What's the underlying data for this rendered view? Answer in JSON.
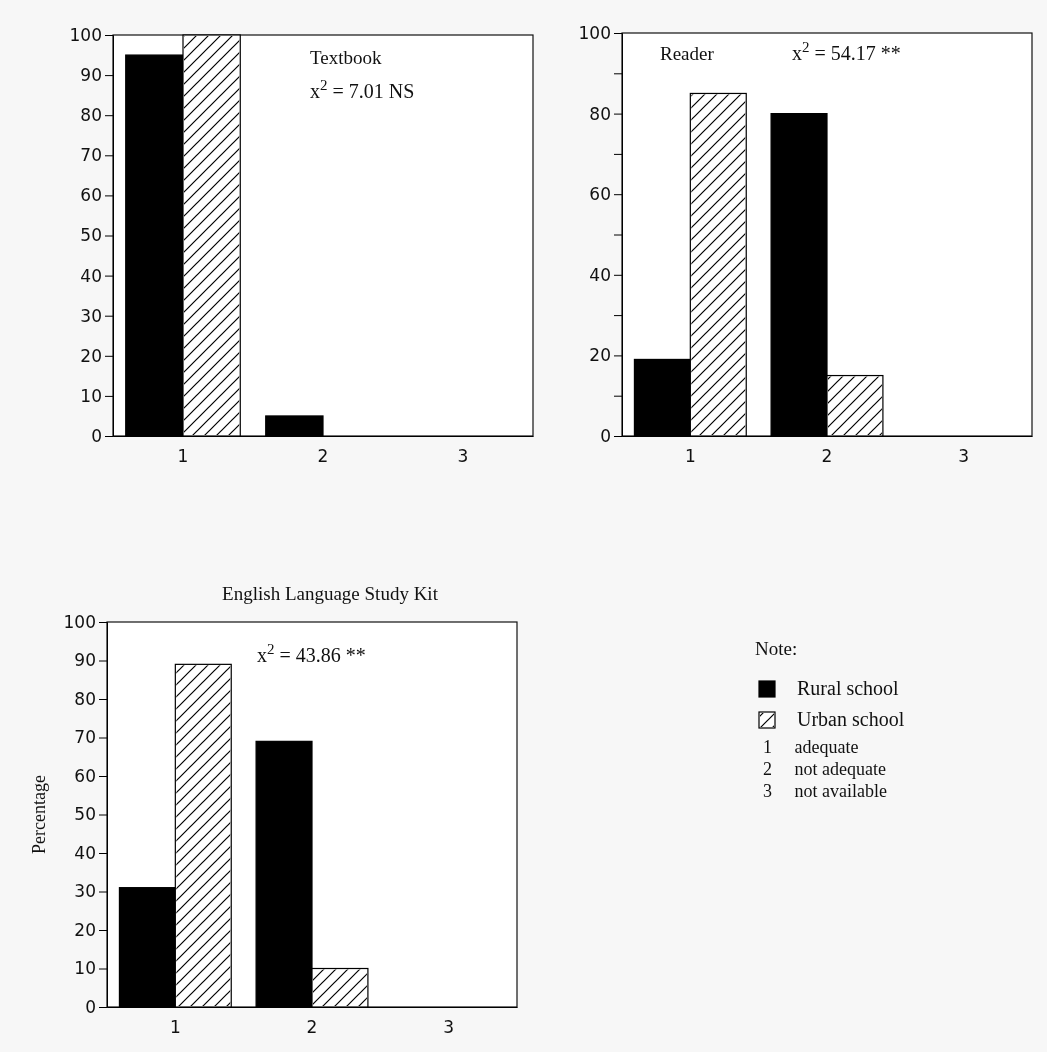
{
  "chart_data": [
    {
      "type": "bar",
      "title": "Textbook",
      "categories": [
        "1",
        "2",
        "3"
      ],
      "series": [
        {
          "color": "#000000",
          "values": [
            95,
            5,
            0
          ]
        },
        {
          "color": "#ffffff",
          "values": [
            100,
            0,
            0
          ]
        }
      ],
      "ylim": [
        0,
        100
      ],
      "yticks": [
        0,
        10,
        20,
        30,
        40,
        50,
        60,
        70,
        80,
        90,
        100
      ],
      "annotations": [
        "x$^{2}$ = 7.01 NS"
      ]
    },
    {
      "type": "bar",
      "title": "Reader",
      "categories": [
        "1",
        "2",
        "3"
      ],
      "series": [
        {
          "color": "#000000",
          "values": [
            19,
            80,
            0
          ]
        },
        {
          "color": "#ffffff",
          "values": [
            85,
            15,
            0
          ]
        }
      ],
      "ylim": [
        0,
        100
      ],
      "yticks": [
        0,
        {
          "value": 10,
          "label": null
        },
        20,
        {
          "value": 30,
          "label": null
        },
        40,
        {
          "value": 50,
          "label": null
        },
        60,
        {
          "value": 70,
          "label": null
        },
        80,
        {
          "value": 90,
          "label": null
        },
        100
      ],
      "annotations": [
        "x$^{2}$ = 54.17 **"
      ]
    },
    {
      "type": "bar",
      "title": "English Language Study Kit",
      "ylabel": "Percentage",
      "categories": [
        "1",
        "2",
        "3"
      ],
      "series": [
        {
          "name": "Rural school",
          "color": "#000000",
          "values": [
            31,
            69,
            0
          ]
        },
        {
          "name": "Urban school",
          "color": "#ffffff",
          "values": [
            89,
            10,
            0
          ]
        }
      ],
      "ylim": [
        0,
        100
      ],
      "yticks": [
        0,
        10,
        20,
        30,
        40,
        50,
        60,
        70,
        80,
        90,
        100
      ],
      "legend": "right",
      "annotations": [
        "x$^{2}$ = 43.86 **",
        "Note:",
        "1     adequate",
        "2     not adequate",
        "3     not available"
      ]
    }
  ]
}
